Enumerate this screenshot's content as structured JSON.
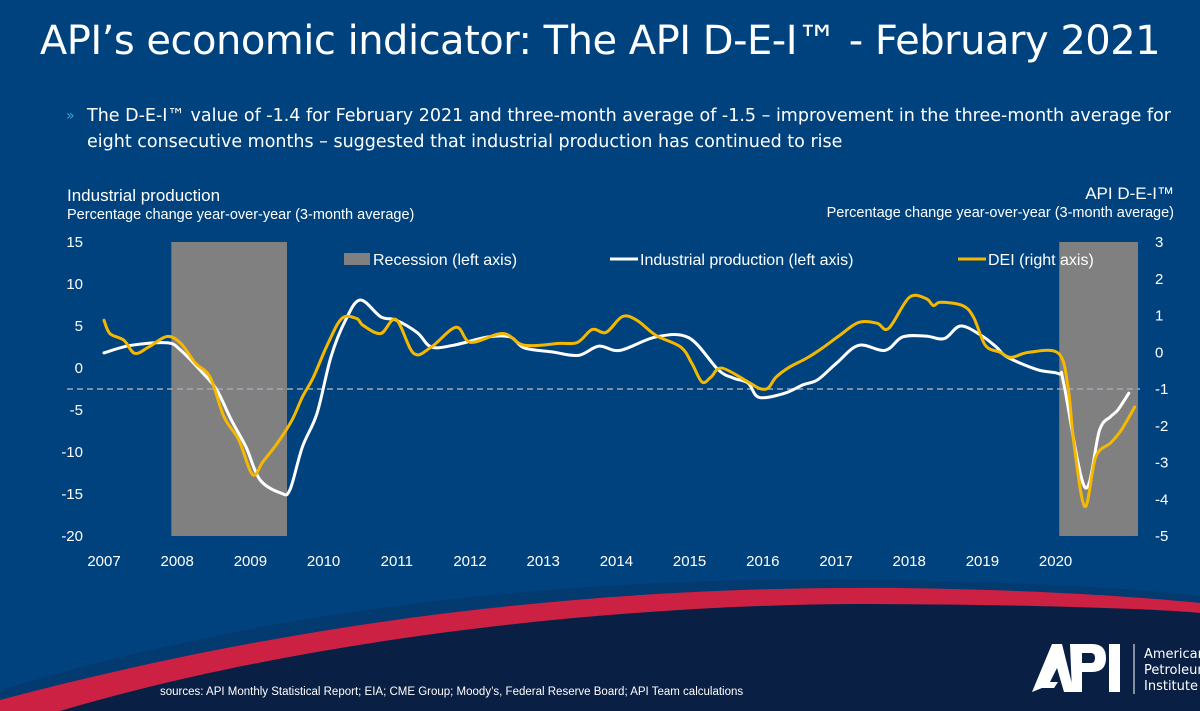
{
  "slide": {
    "title": "API’s economic indicator:  The API D-E-I™ - February 2021",
    "bullet_icon": "chevron-right-icon",
    "bullet": "The D-E-I™ value of -1.4 for February 2021 and three-month average of -1.5 – improvement in the three-month average for eight consecutive months – suggested that industrial production has continued to rise",
    "sources": "sources: API Monthly Statistical Report; EIA; CME Group; Moody’s, Federal Reserve Board; API Team calculations",
    "logo": {
      "mark": "API",
      "lines": [
        "American",
        "Petroleum",
        "Institute"
      ]
    },
    "colors": {
      "background": "#00427d",
      "footer": "#0a1f44",
      "swoosh": "#cc2142"
    }
  },
  "chart_data": {
    "type": "line",
    "left_axis": {
      "title": "Industrial production",
      "subtitle": "Percentage change year-over-year (3-month average)",
      "ylim": [
        -20,
        15
      ],
      "ticks": [
        15,
        10,
        5,
        0,
        -5,
        -10,
        -15,
        -20
      ]
    },
    "right_axis": {
      "title": "API D-E-I™",
      "subtitle": "Percentage change year-over-year (3-month average)",
      "ylim": [
        -5,
        3
      ],
      "ticks": [
        3,
        2,
        1,
        0,
        -1,
        -2,
        -3,
        -4,
        -5
      ]
    },
    "x_ticks": [
      "2007",
      "2008",
      "2009",
      "2010",
      "2011",
      "2012",
      "2013",
      "2014",
      "2015",
      "2016",
      "2017",
      "2018",
      "2019",
      "2020"
    ],
    "grid": false,
    "legend_position": "top",
    "reference_line": {
      "axis": "right",
      "value": -1,
      "style": "dashed",
      "color": "#a0a8b8"
    },
    "recessions": {
      "name": "Recession (left axis)",
      "color": "#808080",
      "spans": [
        [
          2007.92,
          2009.5
        ],
        [
          2020.05,
          2021.15
        ]
      ]
    },
    "series": [
      {
        "name": "Industrial production (left axis)",
        "axis": "left",
        "color": "#ffffff",
        "points": [
          [
            2007.0,
            1.8
          ],
          [
            2007.37,
            2.7
          ],
          [
            2007.86,
            3.0
          ],
          [
            2008.05,
            2.1
          ],
          [
            2008.35,
            -0.6
          ],
          [
            2008.54,
            -2.6
          ],
          [
            2008.74,
            -6.2
          ],
          [
            2008.94,
            -9.4
          ],
          [
            2009.13,
            -13.3
          ],
          [
            2009.42,
            -14.9
          ],
          [
            2009.54,
            -14.5
          ],
          [
            2009.71,
            -9.4
          ],
          [
            2009.91,
            -5.4
          ],
          [
            2010.1,
            1.3
          ],
          [
            2010.3,
            5.7
          ],
          [
            2010.5,
            8.1
          ],
          [
            2010.78,
            6.1
          ],
          [
            2010.99,
            5.7
          ],
          [
            2011.28,
            4.2
          ],
          [
            2011.47,
            2.5
          ],
          [
            2011.77,
            2.7
          ],
          [
            2012.25,
            3.7
          ],
          [
            2012.55,
            3.7
          ],
          [
            2012.74,
            2.4
          ],
          [
            2013.13,
            1.9
          ],
          [
            2013.48,
            1.5
          ],
          [
            2013.76,
            2.6
          ],
          [
            2014.05,
            2.1
          ],
          [
            2014.54,
            3.7
          ],
          [
            2014.99,
            3.6
          ],
          [
            2015.39,
            -0.2
          ],
          [
            2015.6,
            -1.2
          ],
          [
            2015.8,
            -1.8
          ],
          [
            2015.95,
            -3.5
          ],
          [
            2016.3,
            -3.0
          ],
          [
            2016.55,
            -2.0
          ],
          [
            2016.75,
            -1.4
          ],
          [
            2017.01,
            0.6
          ],
          [
            2017.31,
            2.7
          ],
          [
            2017.67,
            2.1
          ],
          [
            2017.91,
            3.7
          ],
          [
            2018.23,
            3.8
          ],
          [
            2018.48,
            3.5
          ],
          [
            2018.7,
            5.0
          ],
          [
            2018.98,
            3.9
          ],
          [
            2019.19,
            2.5
          ],
          [
            2019.34,
            1.3
          ],
          [
            2019.75,
            -0.2
          ],
          [
            2020.05,
            -0.7
          ],
          [
            2020.11,
            -1.8
          ],
          [
            2020.4,
            -14.2
          ],
          [
            2020.6,
            -7.4
          ],
          [
            2020.75,
            -5.8
          ],
          [
            2020.85,
            -5.0
          ],
          [
            2021.0,
            -3.0
          ]
        ]
      },
      {
        "name": "DEI (right axis)",
        "axis": "right",
        "color": "#f5b800",
        "points": [
          [
            2007.0,
            0.87
          ],
          [
            2007.08,
            0.51
          ],
          [
            2007.27,
            0.33
          ],
          [
            2007.42,
            -0.03
          ],
          [
            2007.61,
            0.14
          ],
          [
            2007.86,
            0.43
          ],
          [
            2008.05,
            0.24
          ],
          [
            2008.25,
            -0.3
          ],
          [
            2008.45,
            -0.68
          ],
          [
            2008.64,
            -1.76
          ],
          [
            2008.84,
            -2.38
          ],
          [
            2009.03,
            -3.33
          ],
          [
            2009.17,
            -2.98
          ],
          [
            2009.37,
            -2.47
          ],
          [
            2009.57,
            -1.84
          ],
          [
            2009.71,
            -1.22
          ],
          [
            2009.86,
            -0.68
          ],
          [
            2010.06,
            0.24
          ],
          [
            2010.25,
            0.92
          ],
          [
            2010.45,
            0.92
          ],
          [
            2010.54,
            0.73
          ],
          [
            2010.78,
            0.51
          ],
          [
            2010.99,
            0.89
          ],
          [
            2011.23,
            -0.03
          ],
          [
            2011.47,
            0.14
          ],
          [
            2011.81,
            0.68
          ],
          [
            2012.01,
            0.27
          ],
          [
            2012.45,
            0.51
          ],
          [
            2012.74,
            0.19
          ],
          [
            2013.22,
            0.24
          ],
          [
            2013.47,
            0.27
          ],
          [
            2013.67,
            0.62
          ],
          [
            2013.86,
            0.54
          ],
          [
            2014.08,
            0.97
          ],
          [
            2014.28,
            0.87
          ],
          [
            2014.54,
            0.46
          ],
          [
            2014.88,
            0.14
          ],
          [
            2015.03,
            -0.3
          ],
          [
            2015.17,
            -0.81
          ],
          [
            2015.29,
            -0.68
          ],
          [
            2015.44,
            -0.43
          ],
          [
            2015.8,
            -0.81
          ],
          [
            2015.95,
            -0.98
          ],
          [
            2016.07,
            -0.98
          ],
          [
            2016.18,
            -0.68
          ],
          [
            2016.36,
            -0.41
          ],
          [
            2016.6,
            -0.16
          ],
          [
            2016.81,
            0.11
          ],
          [
            2017.05,
            0.46
          ],
          [
            2017.31,
            0.81
          ],
          [
            2017.56,
            0.79
          ],
          [
            2017.72,
            0.65
          ],
          [
            2018.0,
            1.49
          ],
          [
            2018.23,
            1.46
          ],
          [
            2018.33,
            1.27
          ],
          [
            2018.43,
            1.36
          ],
          [
            2018.73,
            1.27
          ],
          [
            2018.88,
            0.95
          ],
          [
            2019.04,
            0.19
          ],
          [
            2019.24,
            0.0
          ],
          [
            2019.39,
            -0.14
          ],
          [
            2019.64,
            0.0
          ],
          [
            2020.04,
            -0.03
          ],
          [
            2020.17,
            -0.95
          ],
          [
            2020.25,
            -2.47
          ],
          [
            2020.4,
            -4.2
          ],
          [
            2020.55,
            -2.84
          ],
          [
            2020.75,
            -2.47
          ],
          [
            2020.9,
            -2.11
          ],
          [
            2021.08,
            -1.49
          ]
        ]
      }
    ]
  }
}
